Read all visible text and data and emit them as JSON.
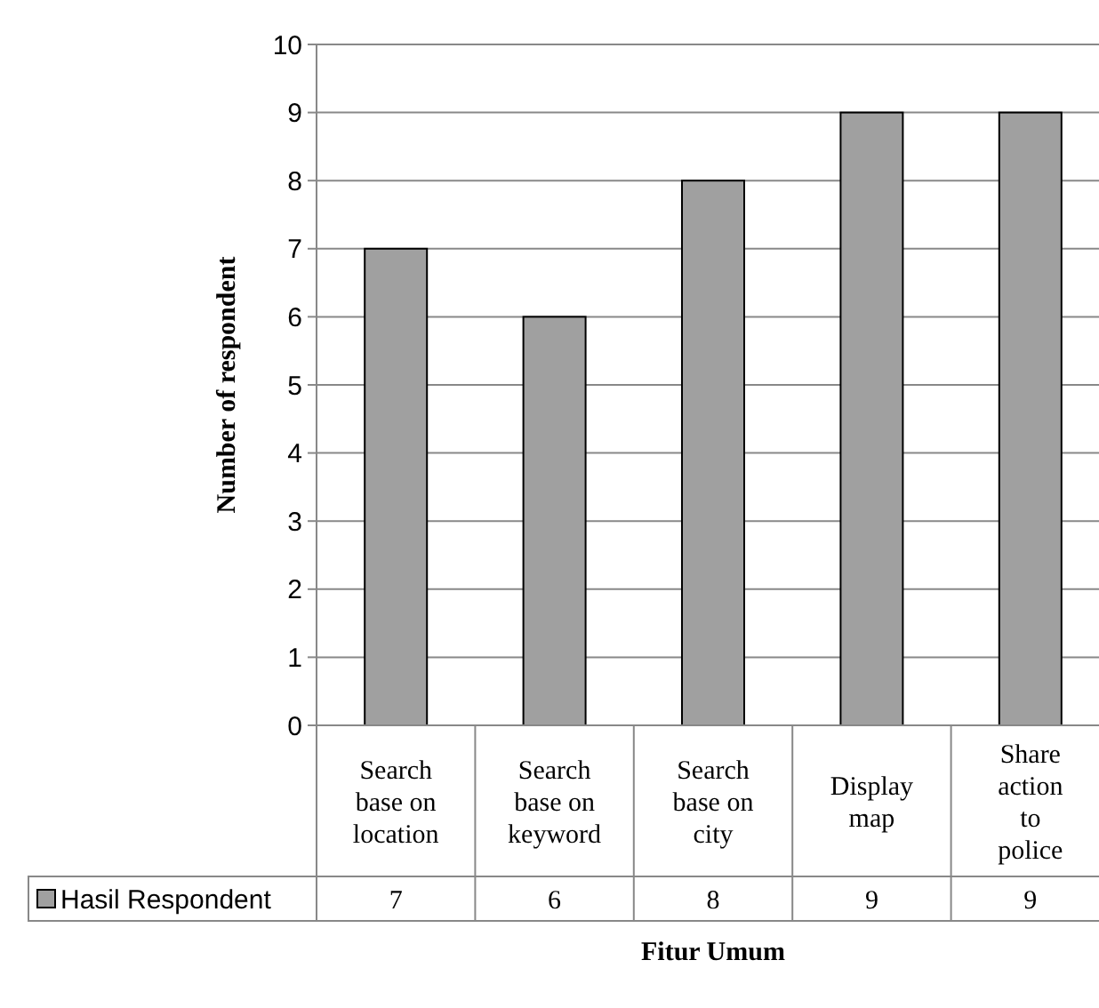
{
  "chart_data": {
    "type": "bar",
    "xlabel": "Fitur Umum",
    "ylabel": "Number of respondent",
    "categories": [
      "Search base on location",
      "Search base on keyword",
      "Search base on city",
      "Display map",
      "Share action to police"
    ],
    "series": [
      {
        "name": "Hasil Respondent",
        "color": "#a0a0a0",
        "values": [
          7,
          6,
          8,
          9,
          9
        ]
      }
    ],
    "ylim": [
      0,
      10
    ],
    "yticks": [
      0,
      1,
      2,
      3,
      4,
      5,
      6,
      7,
      8,
      9,
      10
    ],
    "grid": "y",
    "legend": "bottom",
    "data_labels": true
  }
}
